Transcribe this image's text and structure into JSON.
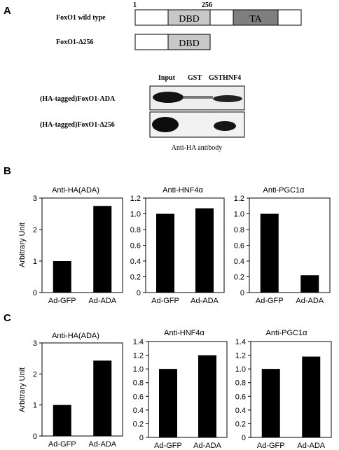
{
  "panel_labels": {
    "a": "A",
    "b": "B",
    "c": "C"
  },
  "domains": {
    "pos_start": "1",
    "pos_cut": "256",
    "wt_name": "FoxO1 wild type",
    "mut_name": "FoxO1-Δ256",
    "dbd_label": "DBD",
    "ta_label": "TA",
    "colors": {
      "dbd_fill": "#c8c8c8",
      "ta_fill": "#7f7f7f",
      "outline": "#000000"
    }
  },
  "blot": {
    "lane_labels": [
      "Input",
      "GST",
      "GSTHNF4"
    ],
    "row_labels": [
      "(HA-tagged)FoxO1-ADA",
      "(HA-tagged)FoxO1-Δ256"
    ],
    "antibody": "Anti-HA antibody"
  },
  "chart_data": [
    {
      "panel": "B",
      "type": "bar",
      "title": "Anti-HA(ADA)",
      "ylabel": "Arbitrary Unit",
      "categories": [
        "Ad-GFP",
        "Ad-ADA"
      ],
      "values": [
        1.0,
        2.75
      ],
      "ylim": [
        0,
        3
      ],
      "yticks": [
        "0",
        "1",
        "2",
        "3"
      ],
      "tickvals": [
        0,
        1,
        2,
        3
      ],
      "grid": false
    },
    {
      "panel": "B",
      "type": "bar",
      "title": "Anti-HNF4α",
      "ylabel": "",
      "categories": [
        "Ad-GFP",
        "Ad-ADA"
      ],
      "values": [
        1.0,
        1.07
      ],
      "ylim": [
        0,
        1.2
      ],
      "yticks": [
        "0",
        "0.2",
        "0.4",
        "0.6",
        "0.8",
        "1.0",
        "1.2"
      ],
      "tickvals": [
        0,
        0.2,
        0.4,
        0.6,
        0.8,
        1.0,
        1.2
      ],
      "grid": false
    },
    {
      "panel": "B",
      "type": "bar",
      "title": "Anti-PGC1α",
      "ylabel": "",
      "categories": [
        "Ad-GFP",
        "Ad-ADA"
      ],
      "values": [
        1.0,
        0.22
      ],
      "ylim": [
        0,
        1.2
      ],
      "yticks": [
        "0",
        "0.2",
        "0.4",
        "0.6",
        "0.8",
        "1.0",
        "1.2"
      ],
      "tickvals": [
        0,
        0.2,
        0.4,
        0.6,
        0.8,
        1.0,
        1.2
      ],
      "grid": false
    },
    {
      "panel": "C",
      "type": "bar",
      "title": "Anti-HA(ADA)",
      "ylabel": "Arbitrary Unit",
      "categories": [
        "Ad-GFP",
        "Ad-ADA"
      ],
      "values": [
        1.0,
        2.43
      ],
      "ylim": [
        0,
        3
      ],
      "yticks": [
        "0",
        "1",
        "2",
        "3"
      ],
      "tickvals": [
        0,
        1,
        2,
        3
      ],
      "grid": false
    },
    {
      "panel": "C",
      "type": "bar",
      "title": "Anti-HNF4α",
      "ylabel": "",
      "categories": [
        "Ad-GFP",
        "Ad-ADA"
      ],
      "values": [
        1.0,
        1.2
      ],
      "ylim": [
        0,
        1.4
      ],
      "yticks": [
        "0",
        "0.2",
        "0.4",
        "0.6",
        "0.8",
        "1.0",
        "1.2",
        "1.4"
      ],
      "tickvals": [
        0,
        0.2,
        0.4,
        0.6,
        0.8,
        1.0,
        1.2,
        1.4
      ],
      "grid": false
    },
    {
      "panel": "C",
      "type": "bar",
      "title": "Anti-PGC1α",
      "ylabel": "",
      "categories": [
        "Ad-GFP",
        "Ad-ADA"
      ],
      "values": [
        1.0,
        1.18
      ],
      "ylim": [
        0,
        1.4
      ],
      "yticks": [
        "0",
        "0.2",
        "0.4",
        "0.6",
        "0.8",
        "1.0",
        "1.2",
        "1.4"
      ],
      "tickvals": [
        0,
        0.2,
        0.4,
        0.6,
        0.8,
        1.0,
        1.2,
        1.4
      ],
      "grid": false
    }
  ]
}
